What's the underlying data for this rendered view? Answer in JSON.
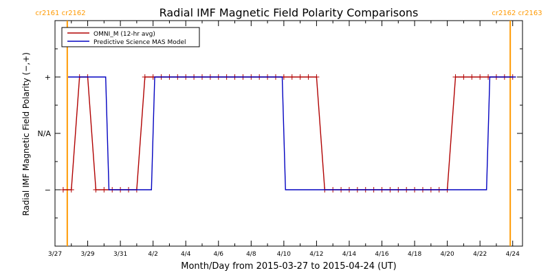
{
  "chart_data": {
    "type": "line",
    "title": "Radial IMF Magnetic Field Polarity Comparisons",
    "xlabel": "Month/Day from 2015-03-27 to 2015-04-24 (UT)",
    "ylabel": "Radial IMF Magnetic Field Polarity (−,+)",
    "x_tick_labels": [
      "3/27",
      "3/29",
      "3/31",
      "4/2",
      "4/4",
      "4/6",
      "4/8",
      "4/10",
      "4/12",
      "4/14",
      "4/16",
      "4/18",
      "4/20",
      "4/22",
      "4/24"
    ],
    "x_tick_days": [
      0,
      2,
      4,
      6,
      8,
      10,
      12,
      14,
      16,
      18,
      20,
      22,
      24,
      26,
      28
    ],
    "y_tick_labels": [
      "+",
      "N/A",
      "−"
    ],
    "y_tick_values": [
      1,
      0,
      -1
    ],
    "xlim": [
      0,
      28.6
    ],
    "ylim": [
      -2,
      2
    ],
    "legend": {
      "position": "top-left",
      "entries": [
        "OMNI_M (12-hr avg)",
        "Predictive Science MAS Model"
      ]
    },
    "carrington_markers": [
      {
        "day": 0.75,
        "label": "cr2161 cr2162",
        "side": "left"
      },
      {
        "day": 27.85,
        "label": "cr2162 cr2163",
        "side": "right"
      }
    ],
    "series": [
      {
        "name": "OMNI_M (12-hr avg)",
        "color": "#b00000",
        "marker": "plus",
        "x": [
          0.5,
          1,
          1.5,
          2,
          2.5,
          3,
          3.5,
          4,
          4.5,
          5,
          5.5,
          6,
          6.5,
          7,
          7.5,
          8,
          8.5,
          9,
          9.5,
          10,
          10.5,
          11,
          11.5,
          12,
          12.5,
          13,
          13.5,
          14,
          14.5,
          15,
          15.5,
          16,
          16.5,
          17,
          17.5,
          18,
          18.5,
          19,
          19.5,
          20,
          20.5,
          21,
          21.5,
          22,
          22.5,
          23,
          23.5,
          24,
          24.5,
          25,
          25.5,
          26,
          26.5,
          27,
          27.5,
          28
        ],
        "y": [
          -1,
          -1,
          1,
          1,
          -1,
          -1,
          -1,
          -1,
          -1,
          -1,
          1,
          1,
          1,
          1,
          1,
          1,
          1,
          1,
          1,
          1,
          1,
          1,
          1,
          1,
          1,
          1,
          1,
          1,
          1,
          1,
          1,
          1,
          -1,
          -1,
          -1,
          -1,
          -1,
          -1,
          -1,
          -1,
          -1,
          -1,
          -1,
          -1,
          -1,
          -1,
          -1,
          -1,
          1,
          1,
          1,
          1,
          1,
          1,
          1,
          1
        ]
      },
      {
        "name": "Predictive Science MAS Model",
        "color": "#0000c0",
        "marker": "none",
        "x": [
          0.8,
          3.1,
          3.3,
          5.9,
          6.1,
          13.9,
          14.1,
          26.4,
          26.6,
          28.2
        ],
        "y": [
          1,
          1,
          -1,
          -1,
          1,
          1,
          -1,
          -1,
          1,
          1
        ]
      }
    ]
  }
}
